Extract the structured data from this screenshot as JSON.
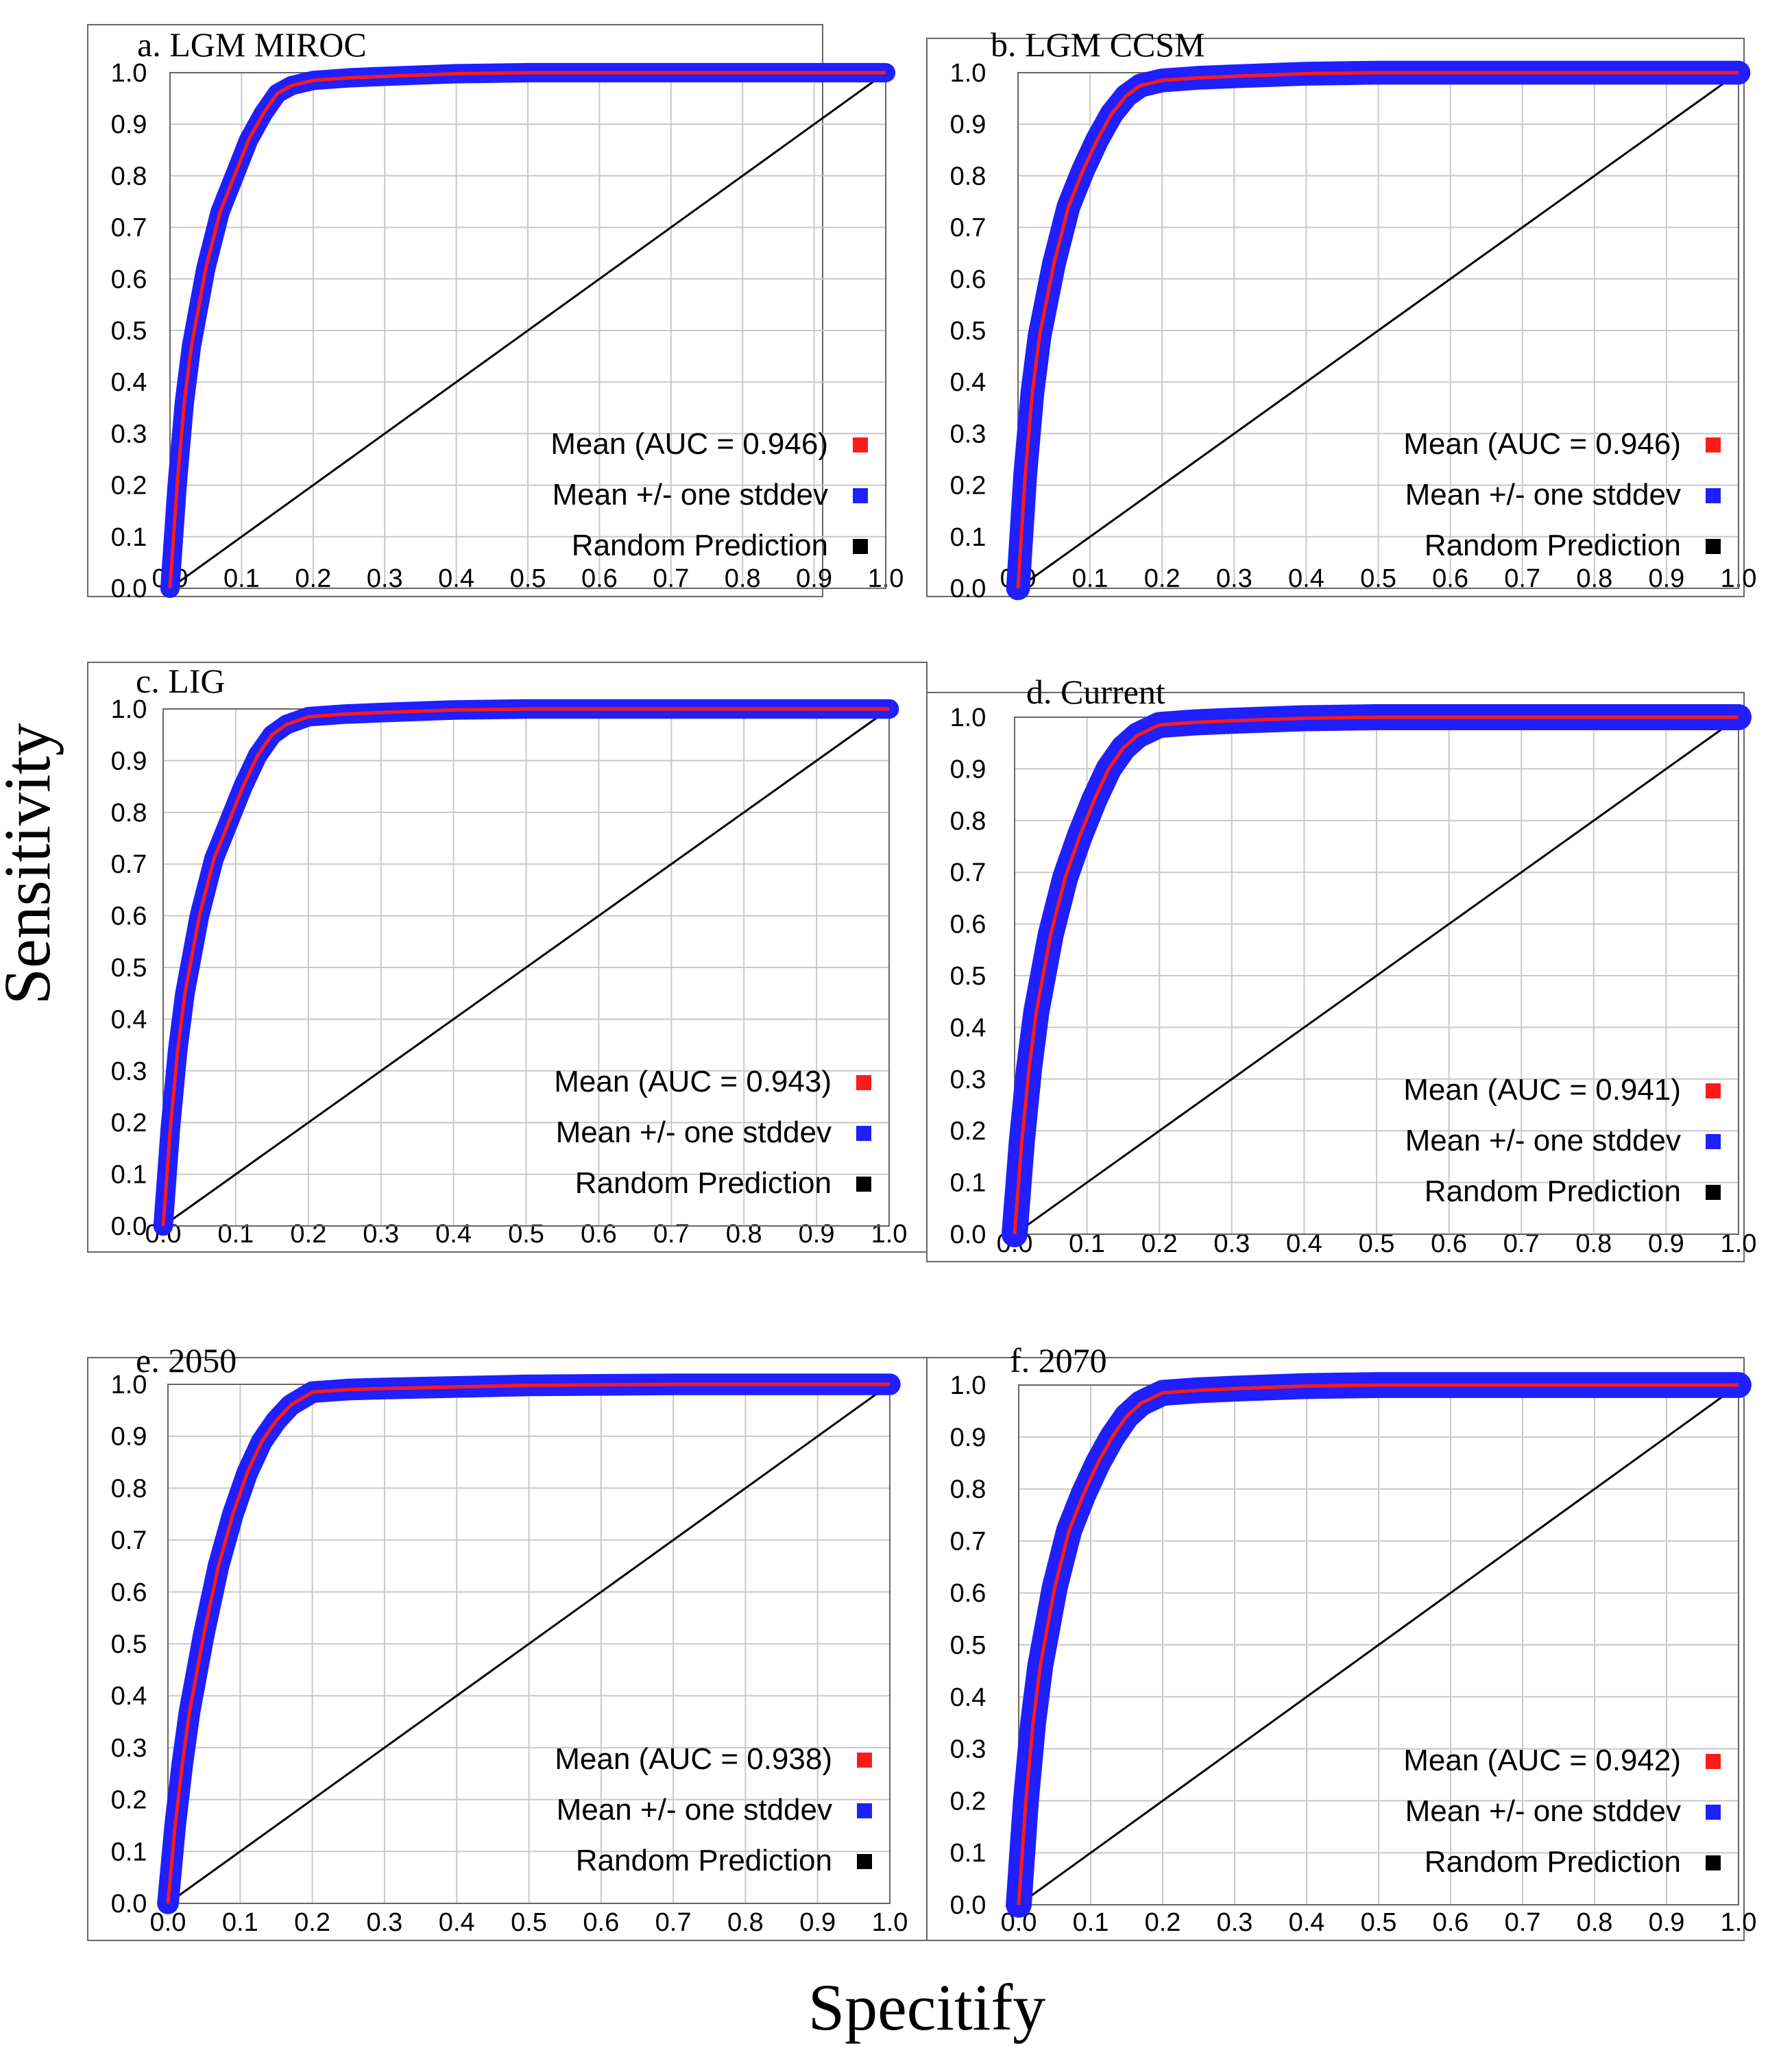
{
  "figure": {
    "y_axis_label": "Sensitivity",
    "x_axis_label": "Specitify"
  },
  "colors": {
    "mean": "#ff1a1a",
    "stddev": "#1f1fff",
    "random": "#000000",
    "grid": "#c8c8c8",
    "frame": "#666666"
  },
  "chart_data": [
    {
      "type": "line",
      "title": "a. LGM MIROC",
      "xlabel": "Specitify",
      "ylabel": "Sensitivity",
      "xlim": [
        0,
        1
      ],
      "ylim": [
        0,
        1
      ],
      "ticks": [
        "0.0",
        "0.1",
        "0.2",
        "0.3",
        "0.4",
        "0.5",
        "0.6",
        "0.7",
        "0.8",
        "0.9",
        "1.0"
      ],
      "grid": true,
      "legend_position": "bottom-right",
      "legend": [
        "Mean (AUC = 0.946)",
        "Mean +/- one stddev",
        "Random Prediction"
      ],
      "x": [
        0,
        0.01,
        0.02,
        0.03,
        0.05,
        0.07,
        0.09,
        0.11,
        0.13,
        0.15,
        0.17,
        0.2,
        0.25,
        0.3,
        0.4,
        0.5,
        0.7,
        1.0
      ],
      "series": [
        {
          "name": "Mean",
          "values": [
            0,
            0.2,
            0.36,
            0.47,
            0.62,
            0.73,
            0.8,
            0.87,
            0.92,
            0.96,
            0.975,
            0.985,
            0.99,
            0.993,
            0.998,
            1.0,
            1.0,
            1.0
          ]
        },
        {
          "name": "Mean +/- one stddev",
          "band_width": 0.018
        },
        {
          "name": "Random Prediction",
          "x": [
            0,
            1
          ],
          "values": [
            0,
            1
          ]
        }
      ]
    },
    {
      "type": "line",
      "title": "b. LGM CCSM",
      "xlabel": "Specitify",
      "ylabel": "Sensitivity",
      "xlim": [
        0,
        1
      ],
      "ylim": [
        0,
        1
      ],
      "ticks": [
        "0.0",
        "0.1",
        "0.2",
        "0.3",
        "0.4",
        "0.5",
        "0.6",
        "0.7",
        "0.8",
        "0.9",
        "1.0"
      ],
      "grid": true,
      "legend_position": "bottom-right",
      "legend": [
        "Mean (AUC = 0.946)",
        "Mean +/- one stddev",
        "Random Prediction"
      ],
      "x": [
        0,
        0.01,
        0.02,
        0.03,
        0.05,
        0.07,
        0.09,
        0.11,
        0.13,
        0.15,
        0.17,
        0.2,
        0.25,
        0.3,
        0.4,
        0.5,
        0.7,
        1.0
      ],
      "series": [
        {
          "name": "Mean",
          "values": [
            0,
            0.22,
            0.38,
            0.49,
            0.63,
            0.74,
            0.81,
            0.87,
            0.92,
            0.955,
            0.975,
            0.985,
            0.99,
            0.993,
            0.998,
            1.0,
            1.0,
            1.0
          ]
        },
        {
          "name": "Mean +/- one stddev",
          "band_width": 0.022
        },
        {
          "name": "Random Prediction",
          "x": [
            0,
            1
          ],
          "values": [
            0,
            1
          ]
        }
      ]
    },
    {
      "type": "line",
      "title": "c. LIG",
      "xlabel": "Specitify",
      "ylabel": "Sensitivity",
      "xlim": [
        0,
        1
      ],
      "ylim": [
        0,
        1
      ],
      "ticks": [
        "0.0",
        "0.1",
        "0.2",
        "0.3",
        "0.4",
        "0.5",
        "0.6",
        "0.7",
        "0.8",
        "0.9",
        "1.0"
      ],
      "grid": true,
      "legend_position": "bottom-right",
      "legend": [
        "Mean (AUC = 0.943)",
        "Mean +/- one stddev",
        "Random Prediction"
      ],
      "x": [
        0,
        0.01,
        0.02,
        0.03,
        0.05,
        0.07,
        0.09,
        0.11,
        0.13,
        0.15,
        0.17,
        0.2,
        0.25,
        0.3,
        0.4,
        0.5,
        0.7,
        1.0
      ],
      "series": [
        {
          "name": "Mean",
          "values": [
            0,
            0.19,
            0.34,
            0.45,
            0.6,
            0.71,
            0.78,
            0.85,
            0.91,
            0.95,
            0.97,
            0.985,
            0.99,
            0.993,
            0.998,
            1.0,
            1.0,
            1.0
          ]
        },
        {
          "name": "Mean +/- one stddev",
          "band_width": 0.018
        },
        {
          "name": "Random Prediction",
          "x": [
            0,
            1
          ],
          "values": [
            0,
            1
          ]
        }
      ]
    },
    {
      "type": "line",
      "title": "d. Current",
      "xlabel": "Specitify",
      "ylabel": "Sensitivity",
      "xlim": [
        0,
        1
      ],
      "ylim": [
        0,
        1
      ],
      "ticks": [
        "0.0",
        "0.1",
        "0.2",
        "0.3",
        "0.4",
        "0.5",
        "0.6",
        "0.7",
        "0.8",
        "0.9",
        "1.0"
      ],
      "grid": true,
      "legend_position": "bottom-right",
      "legend": [
        "Mean (AUC = 0.941)",
        "Mean +/- one stddev",
        "Random Prediction"
      ],
      "x": [
        0,
        0.01,
        0.02,
        0.03,
        0.05,
        0.07,
        0.09,
        0.11,
        0.13,
        0.15,
        0.17,
        0.2,
        0.25,
        0.3,
        0.4,
        0.5,
        0.7,
        1.0
      ],
      "series": [
        {
          "name": "Mean",
          "values": [
            0,
            0.18,
            0.32,
            0.43,
            0.58,
            0.69,
            0.77,
            0.84,
            0.9,
            0.94,
            0.965,
            0.985,
            0.99,
            0.993,
            0.998,
            1.0,
            1.0,
            1.0
          ]
        },
        {
          "name": "Mean +/- one stddev",
          "band_width": 0.024
        },
        {
          "name": "Random Prediction",
          "x": [
            0,
            1
          ],
          "values": [
            0,
            1
          ]
        }
      ]
    },
    {
      "type": "line",
      "title": "e. 2050",
      "xlabel": "Specitify",
      "ylabel": "Sensitivity",
      "xlim": [
        0,
        1
      ],
      "ylim": [
        0,
        1
      ],
      "ticks": [
        "0.0",
        "0.1",
        "0.2",
        "0.3",
        "0.4",
        "0.5",
        "0.6",
        "0.7",
        "0.8",
        "0.9",
        "1.0"
      ],
      "grid": true,
      "legend_position": "bottom-right",
      "legend": [
        "Mean (AUC = 0.938)",
        "Mean +/- one stddev",
        "Random Prediction"
      ],
      "x": [
        0,
        0.01,
        0.02,
        0.03,
        0.05,
        0.07,
        0.09,
        0.11,
        0.13,
        0.15,
        0.17,
        0.2,
        0.25,
        0.3,
        0.4,
        0.5,
        0.7,
        1.0
      ],
      "series": [
        {
          "name": "Mean",
          "values": [
            0,
            0.15,
            0.27,
            0.37,
            0.52,
            0.65,
            0.75,
            0.83,
            0.89,
            0.93,
            0.96,
            0.985,
            0.99,
            0.992,
            0.995,
            0.998,
            1.0,
            1.0
          ]
        },
        {
          "name": "Mean +/- one stddev",
          "band_width": 0.02
        },
        {
          "name": "Random Prediction",
          "x": [
            0,
            1
          ],
          "values": [
            0,
            1
          ]
        }
      ]
    },
    {
      "type": "line",
      "title": "f. 2070",
      "xlabel": "Specitify",
      "ylabel": "Sensitivity",
      "xlim": [
        0,
        1
      ],
      "ylim": [
        0,
        1
      ],
      "ticks": [
        "0.0",
        "0.1",
        "0.2",
        "0.3",
        "0.4",
        "0.5",
        "0.6",
        "0.7",
        "0.8",
        "0.9",
        "1.0"
      ],
      "grid": true,
      "legend_position": "bottom-right",
      "legend": [
        "Mean (AUC = 0.942)",
        "Mean +/- one stddev",
        "Random Prediction"
      ],
      "x": [
        0,
        0.01,
        0.02,
        0.03,
        0.05,
        0.07,
        0.09,
        0.11,
        0.13,
        0.15,
        0.17,
        0.2,
        0.25,
        0.3,
        0.4,
        0.5,
        0.7,
        1.0
      ],
      "series": [
        {
          "name": "Mean",
          "values": [
            0,
            0.2,
            0.35,
            0.46,
            0.61,
            0.72,
            0.79,
            0.85,
            0.9,
            0.94,
            0.965,
            0.985,
            0.99,
            0.993,
            0.998,
            1.0,
            1.0,
            1.0
          ]
        },
        {
          "name": "Mean +/- one stddev",
          "band_width": 0.024
        },
        {
          "name": "Random Prediction",
          "x": [
            0,
            1
          ],
          "values": [
            0,
            1
          ]
        }
      ]
    }
  ]
}
